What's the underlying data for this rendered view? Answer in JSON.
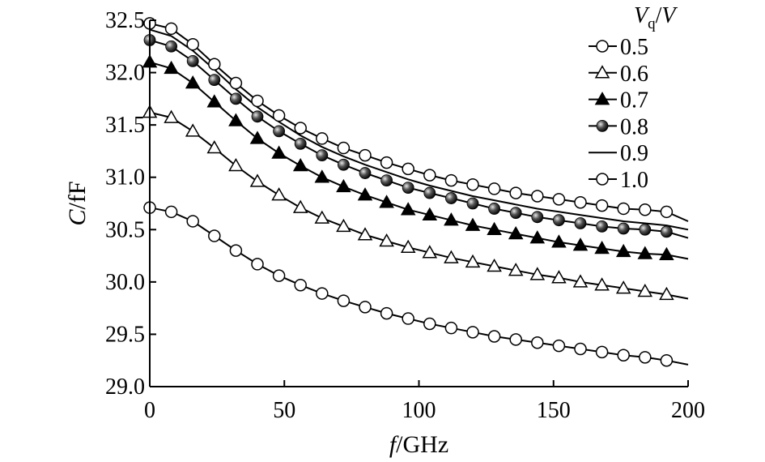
{
  "chart_data": {
    "type": "line",
    "title": "",
    "xlabel": {
      "italic": "f",
      "unit": "/GHz"
    },
    "ylabel": {
      "italic": "C",
      "unit": "/fF"
    },
    "xlim": [
      0,
      200
    ],
    "ylim": [
      29.0,
      32.5
    ],
    "x_ticks": [
      0,
      50,
      100,
      150,
      200
    ],
    "x_tick_labels": [
      "0",
      "50",
      "100",
      "150",
      "200"
    ],
    "y_ticks": [
      29.0,
      29.5,
      30.0,
      30.5,
      31.0,
      31.5,
      32.0,
      32.5
    ],
    "y_tick_labels": [
      "29.0",
      "29.5",
      "30.0",
      "30.5",
      "31.0",
      "31.5",
      "32.0",
      "32.5"
    ],
    "grid": false,
    "legend": {
      "placement": "top-right",
      "title_italic_main": "V",
      "title_subscript": "q",
      "title_slash": "/",
      "title_italic_tail": "V"
    },
    "x": [
      0,
      8,
      16,
      24,
      32,
      40,
      48,
      56,
      64,
      72,
      80,
      88,
      96,
      104,
      112,
      120,
      128,
      136,
      144,
      152,
      160,
      168,
      176,
      184,
      192,
      200
    ],
    "series": [
      {
        "name": "0.5",
        "marker": "open-circle",
        "values": [
          30.71,
          30.67,
          30.58,
          30.44,
          30.3,
          30.17,
          30.06,
          29.97,
          29.89,
          29.82,
          29.76,
          29.7,
          29.65,
          29.6,
          29.56,
          29.52,
          29.48,
          29.45,
          29.42,
          29.39,
          29.36,
          29.33,
          29.3,
          29.28,
          29.25,
          29.21
        ]
      },
      {
        "name": "0.6",
        "marker": "open-triangle",
        "values": [
          31.62,
          31.57,
          31.44,
          31.28,
          31.11,
          30.96,
          30.83,
          30.71,
          30.61,
          30.53,
          30.45,
          30.39,
          30.33,
          30.28,
          30.23,
          30.19,
          30.15,
          30.11,
          30.07,
          30.04,
          30.0,
          29.97,
          29.94,
          29.91,
          29.88,
          29.84
        ]
      },
      {
        "name": "0.7",
        "marker": "filled-triangle",
        "values": [
          32.1,
          32.04,
          31.9,
          31.72,
          31.54,
          31.37,
          31.23,
          31.11,
          31.0,
          30.91,
          30.83,
          30.76,
          30.69,
          30.64,
          30.59,
          30.54,
          30.5,
          30.46,
          30.42,
          30.38,
          30.35,
          30.32,
          30.29,
          30.27,
          30.26,
          30.22
        ]
      },
      {
        "name": "0.8",
        "marker": "sphere",
        "values": [
          32.31,
          32.25,
          32.11,
          31.93,
          31.75,
          31.58,
          31.44,
          31.32,
          31.21,
          31.12,
          31.04,
          30.97,
          30.9,
          30.85,
          30.8,
          30.75,
          30.7,
          30.66,
          30.62,
          30.59,
          30.56,
          30.53,
          30.51,
          30.5,
          30.48,
          30.42
        ]
      },
      {
        "name": "0.9",
        "marker": "none",
        "values": [
          32.41,
          32.35,
          32.21,
          32.03,
          31.84,
          31.67,
          31.53,
          31.4,
          31.29,
          31.2,
          31.12,
          31.05,
          30.98,
          30.92,
          30.87,
          30.82,
          30.78,
          30.74,
          30.7,
          30.67,
          30.64,
          30.61,
          30.58,
          30.56,
          30.54,
          30.5
        ]
      },
      {
        "name": "1.0",
        "marker": "open-circle",
        "values": [
          32.47,
          32.42,
          32.27,
          32.08,
          31.9,
          31.73,
          31.59,
          31.47,
          31.37,
          31.28,
          31.21,
          31.14,
          31.08,
          31.02,
          30.97,
          30.93,
          30.89,
          30.85,
          30.82,
          30.79,
          30.76,
          30.73,
          30.7,
          30.69,
          30.67,
          30.58
        ]
      }
    ]
  }
}
